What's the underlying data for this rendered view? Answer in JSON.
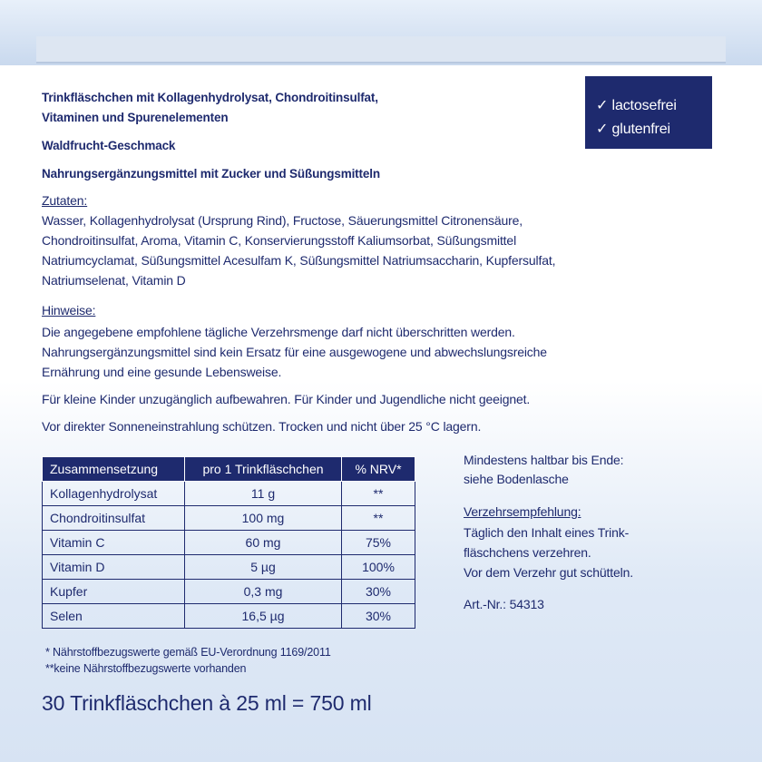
{
  "badge": [
    "✓ lactosefrei",
    "✓ glutenfrei"
  ],
  "headline": [
    "Trinkfläschchen mit Kollagenhydrolysat, Chondroitinsulfat,",
    "Vitaminen und Spurenelementen"
  ],
  "flavor": "Waldfrucht-Geschmack",
  "category": "Nahrungsergänzungsmittel mit Zucker und Süßungsmitteln",
  "ingredients": {
    "heading": "Zutaten:",
    "lines": [
      "Wasser, Kollagenhydrolysat (Ursprung Rind), Fructose, Säuerungsmittel Citronensäure,",
      "Chondroitinsulfat, Aroma, Vitamin C, Konservierungsstoff Kaliumsorbat, Süßungsmittel",
      "Natriumcyclamat, Süßungsmittel Acesulfam K, Süßungsmittel Natriumsaccharin, Kupfersulfat,",
      "Natriumselenat, Vitamin D"
    ]
  },
  "notes": {
    "heading": "Hinweise:",
    "lines": [
      "Die angegebene empfohlene tägliche Verzehrsmenge darf nicht überschritten werden.",
      "Nahrungsergänzungsmittel sind kein Ersatz für eine ausgewogene und abwechslungsreiche",
      "Ernährung und eine gesunde Lebensweise."
    ]
  },
  "warnings": [
    "Für kleine Kinder unzugänglich aufbewahren. Für Kinder und Jugendliche nicht geeignet.",
    "Vor direkter Sonneneinstrahlung schützen. Trocken und nicht über 25 °C lagern."
  ],
  "table": {
    "header": [
      "Zusammensetzung",
      "pro 1 Trinkfläschchen",
      "% NRV*"
    ],
    "rows": [
      [
        "Kollagenhydrolysat",
        "11 g",
        "**"
      ],
      [
        "Chondroitinsulfat",
        "100 mg",
        "**"
      ],
      [
        "Vitamin C",
        "60 mg",
        "75%"
      ],
      [
        "Vitamin D",
        "5 µg",
        "100%"
      ],
      [
        "Kupfer",
        "0,3 mg",
        "30%"
      ],
      [
        "Selen",
        "16,5 µg",
        "30%"
      ]
    ]
  },
  "footnotes": [
    "* Nährstoffbezugswerte gemäß EU-Verordnung 1169/2011",
    "**keine Nährstoffbezugswerte vorhanden"
  ],
  "best_before": [
    "Mindestens haltbar bis Ende:",
    "siehe Bodenlasche"
  ],
  "usage": {
    "heading": "Verzehrsempfehlung:",
    "lines": [
      "Täglich den Inhalt eines Trink-",
      "fläschchens verzehren.",
      "Vor dem Verzehr gut schütteln."
    ]
  },
  "article_number": "Art.-Nr.: 54313",
  "quantity": "30 Trinkfläschchen à 25 ml = 750 ml"
}
